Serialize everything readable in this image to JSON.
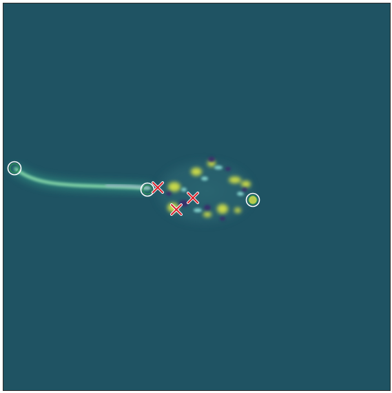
{
  "canvas": {
    "background_color": "#1f5363",
    "frame_color": "#2a2a2a"
  },
  "trail": {
    "icon": "trail-streak",
    "color": "#7fd0a6"
  },
  "blob": {
    "icon": "activity-blob",
    "warm_color": "#c8d84a",
    "cool_color": "#3a2a6a"
  },
  "circle_markers": [
    {
      "name": "circle-marker-1",
      "icon": "circle-marker-icon",
      "color": "#b8f0c8"
    },
    {
      "name": "circle-marker-2",
      "icon": "circle-marker-icon",
      "color": "#b8f0c8"
    },
    {
      "name": "circle-marker-3",
      "icon": "circle-marker-icon",
      "color": "#b8f0c8"
    }
  ],
  "cross_markers": [
    {
      "name": "cross-marker-1",
      "icon": "cross-marker-icon",
      "color": "#d8202a"
    },
    {
      "name": "cross-marker-2",
      "icon": "cross-marker-icon",
      "color": "#d8202a"
    },
    {
      "name": "cross-marker-3",
      "icon": "cross-marker-icon",
      "color": "#d8202a"
    }
  ]
}
